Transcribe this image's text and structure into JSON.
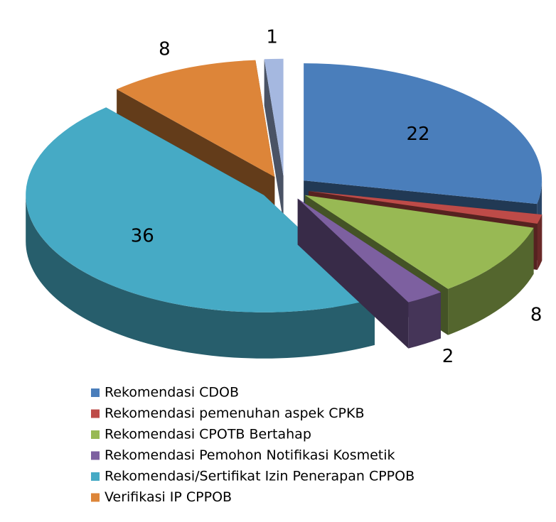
{
  "chart_data": {
    "type": "pie3d",
    "categories": [
      "Rekomendasi CDOB",
      "Rekomendasi pemenuhan aspek CPKB",
      "Rekomendasi CPOTB Bertahap",
      "Rekomendasi Pemohon Notifikasi Kosmetik",
      "Rekomendasi/Sertifikat Izin Penerapan CPPOB",
      "Verifikasi IP CPPOB",
      null
    ],
    "values": [
      22,
      1,
      8,
      2,
      36,
      8,
      1
    ],
    "colors": [
      "#4a7ebb",
      "#be4b48",
      "#98b954",
      "#7d60a0",
      "#46aac5",
      "#dd8539",
      "#a5b8e0"
    ],
    "legend": "bottom"
  }
}
